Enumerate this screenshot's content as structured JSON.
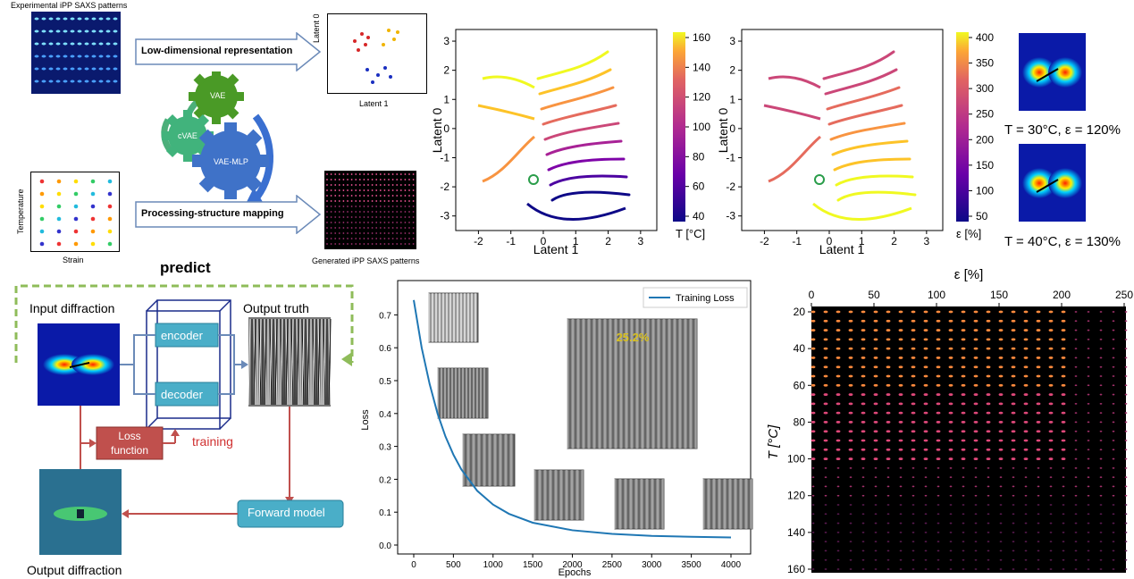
{
  "top_left": {
    "exp_title": "Experimental iPP SAXS patterns",
    "low_dim_label": "Low-dimensional representation",
    "proc_struct_label": "Processing-structure mapping",
    "scatter_ylabel": "Latent 0",
    "scatter_xlabel": "Latent 1",
    "grid_ylabel": "Temperature",
    "grid_xlabel": "Strain",
    "generated_title": "Generated iPP SAXS patterns",
    "gears": [
      "VAE",
      "cVAE",
      "VAE-MLP"
    ]
  },
  "latent_T": {
    "xlabel": "Latent 1",
    "ylabel": "Latent 0",
    "xticks": [
      "-2",
      "-1",
      "0",
      "1",
      "2",
      "3"
    ],
    "yticks": [
      "3",
      "2",
      "1",
      "0",
      "-1",
      "-2",
      "-3"
    ],
    "cbar_ticks": [
      "160",
      "140",
      "120",
      "100",
      "80",
      "60",
      "40"
    ],
    "cbar_label": "T [°C]"
  },
  "latent_eps": {
    "xlabel": "Latent 1",
    "ylabel": "Latent 0",
    "xticks": [
      "-2",
      "-1",
      "0",
      "1",
      "2",
      "3"
    ],
    "yticks": [
      "3",
      "2",
      "1",
      "0",
      "-1",
      "-2",
      "-3"
    ],
    "cbar_ticks": [
      "400",
      "350",
      "300",
      "250",
      "200",
      "150",
      "100",
      "50"
    ],
    "cbar_label": "ε [%]"
  },
  "patterns": {
    "first": "T = 30°C, ε = 120%",
    "second": "T = 40°C, ε = 130%"
  },
  "predict_diagram": {
    "title": "predict",
    "input": "Input diffraction",
    "output_truth": "Output truth",
    "encoder": "encoder",
    "decoder": "decoder",
    "loss": "Loss function",
    "training": "training",
    "forward": "Forward model",
    "output_diffraction": "Output diffraction"
  },
  "loss_chart": {
    "annotation": "25.2%"
  },
  "heatmap": {
    "xlabel": "ε [%]",
    "ylabel": "T [°C]",
    "xticks": [
      "0",
      "50",
      "100",
      "150",
      "200",
      "250"
    ],
    "yticks": [
      "20",
      "40",
      "60",
      "80",
      "100",
      "120",
      "140",
      "160"
    ]
  },
  "chart_data": {
    "type": "line",
    "title": "",
    "xlabel": "Epochs",
    "ylabel": "Loss",
    "xlim": [
      0,
      4000
    ],
    "ylim": [
      0,
      0.75
    ],
    "xticks": [
      0,
      500,
      1000,
      1500,
      2000,
      2500,
      3000,
      3500,
      4000
    ],
    "yticks": [
      0.0,
      0.1,
      0.2,
      0.3,
      0.4,
      0.5,
      0.6,
      0.7
    ],
    "legend": "top-right",
    "series": [
      {
        "name": "Training Loss",
        "color": "#1f77b4",
        "x": [
          0,
          100,
          200,
          300,
          400,
          500,
          600,
          800,
          1000,
          1200,
          1500,
          2000,
          2500,
          3000,
          3500,
          4000
        ],
        "y": [
          0.745,
          0.6,
          0.49,
          0.4,
          0.33,
          0.275,
          0.23,
          0.165,
          0.123,
          0.095,
          0.068,
          0.045,
          0.034,
          0.028,
          0.025,
          0.023
        ]
      }
    ]
  }
}
